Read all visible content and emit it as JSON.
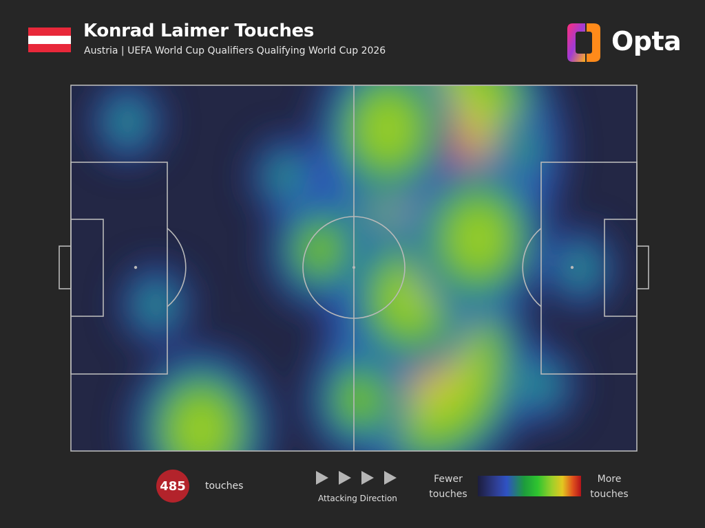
{
  "header": {
    "title": "Konrad Laimer Touches",
    "subtitle": "Austria | UEFA World Cup Qualifiers Qualifying World Cup 2026",
    "flag_colors": [
      "#e8283a",
      "#ffffff",
      "#e8283a"
    ],
    "brand": "Opta",
    "brand_icon": "opta-logo-icon"
  },
  "legend": {
    "touches_count": "485",
    "touches_label": "touches",
    "direction_label": "Attacking Direction",
    "direction_icon": "play-triangle-icon",
    "scale_low_line1": "Fewer",
    "scale_low_line2": "touches",
    "scale_high_line1": "More",
    "scale_high_line2": "touches",
    "count_badge_color": "#b3232b"
  },
  "chart_data": {
    "type": "heatmap",
    "title": "Konrad Laimer Touches",
    "subtitle": "Austria | UEFA World Cup Qualifiers Qualifying World Cup 2026",
    "xlabel": "",
    "ylabel": "",
    "x_range": [
      0,
      100
    ],
    "y_range": [
      0,
      100
    ],
    "attacking_direction": "left-to-right",
    "total_touches": 485,
    "colorscale": [
      "#1c1d3d",
      "#2f52c4",
      "#22b02c",
      "#9fcf2a",
      "#e3c820",
      "#e0521c",
      "#b3121a"
    ],
    "hotspots": [
      {
        "x": 65,
        "y": 18,
        "intensity": 1.0
      },
      {
        "x": 63,
        "y": 76,
        "intensity": 0.85
      },
      {
        "x": 60,
        "y": 58,
        "intensity": 0.55
      },
      {
        "x": 56,
        "y": 12,
        "intensity": 0.5
      },
      {
        "x": 72,
        "y": 42,
        "intensity": 0.5
      },
      {
        "x": 44,
        "y": 45,
        "intensity": 0.45
      },
      {
        "x": 38,
        "y": 25,
        "intensity": 0.35
      },
      {
        "x": 51,
        "y": 86,
        "intensity": 0.45
      },
      {
        "x": 23,
        "y": 94,
        "intensity": 0.5
      },
      {
        "x": 80,
        "y": 18,
        "intensity": 0.35
      },
      {
        "x": 83,
        "y": 82,
        "intensity": 0.35
      },
      {
        "x": 10,
        "y": 10,
        "intensity": 0.18
      },
      {
        "x": 15,
        "y": 60,
        "intensity": 0.15
      },
      {
        "x": 90,
        "y": 50,
        "intensity": 0.15
      }
    ],
    "legend": {
      "low": "Fewer touches",
      "high": "More touches"
    }
  }
}
